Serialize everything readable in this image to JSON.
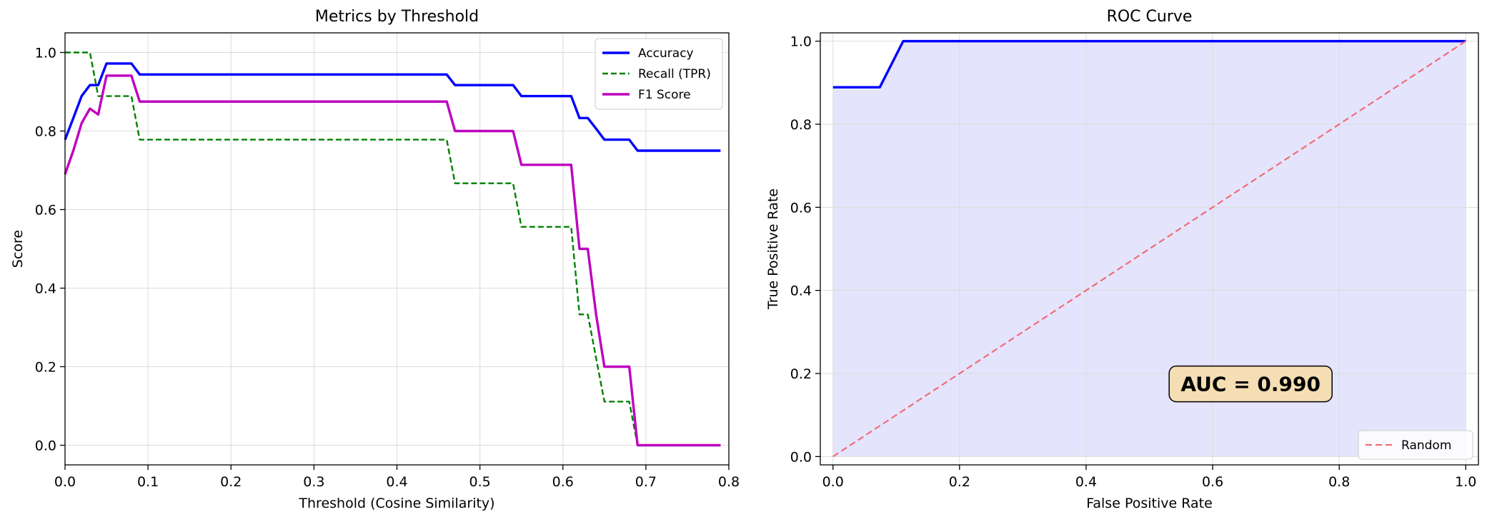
{
  "chart_data": [
    {
      "type": "line",
      "title": "Metrics by Threshold",
      "xlabel": "Threshold (Cosine Similarity)",
      "ylabel": "Score",
      "xlim": [
        0.0,
        0.8
      ],
      "ylim": [
        -0.05,
        1.05
      ],
      "xticks": [
        "0.0",
        "0.1",
        "0.2",
        "0.3",
        "0.4",
        "0.5",
        "0.6",
        "0.7",
        "0.8"
      ],
      "yticks": [
        "0.0",
        "0.2",
        "0.4",
        "0.6",
        "0.8",
        "1.0"
      ],
      "grid": true,
      "legend_position": "upper right",
      "series": [
        {
          "name": "Accuracy",
          "color": "#0000ff",
          "style": "solid",
          "x": [
            0.0,
            0.01,
            0.02,
            0.03,
            0.04,
            0.05,
            0.06,
            0.07,
            0.08,
            0.09,
            0.1,
            0.46,
            0.47,
            0.54,
            0.55,
            0.61,
            0.62,
            0.63,
            0.64,
            0.65,
            0.68,
            0.69,
            0.79
          ],
          "y": [
            0.778,
            0.833,
            0.889,
            0.917,
            0.917,
            0.972,
            0.972,
            0.972,
            0.972,
            0.944,
            0.944,
            0.944,
            0.917,
            0.917,
            0.889,
            0.889,
            0.833,
            0.833,
            0.806,
            0.778,
            0.778,
            0.75,
            0.75
          ]
        },
        {
          "name": "Recall (TPR)",
          "color": "#008000",
          "style": "dashed",
          "x": [
            0.0,
            0.03,
            0.04,
            0.08,
            0.09,
            0.46,
            0.47,
            0.54,
            0.55,
            0.61,
            0.62,
            0.63,
            0.64,
            0.65,
            0.68,
            0.69,
            0.79
          ],
          "y": [
            1.0,
            1.0,
            0.889,
            0.889,
            0.778,
            0.778,
            0.667,
            0.667,
            0.556,
            0.556,
            0.333,
            0.333,
            0.222,
            0.111,
            0.111,
            0.0,
            0.0
          ]
        },
        {
          "name": "F1 Score",
          "color": "#bf00bf",
          "style": "solid",
          "x": [
            0.0,
            0.01,
            0.02,
            0.03,
            0.04,
            0.05,
            0.08,
            0.09,
            0.46,
            0.47,
            0.54,
            0.55,
            0.61,
            0.62,
            0.63,
            0.64,
            0.65,
            0.68,
            0.69,
            0.79
          ],
          "y": [
            0.69,
            0.75,
            0.82,
            0.857,
            0.842,
            0.941,
            0.941,
            0.875,
            0.875,
            0.8,
            0.8,
            0.714,
            0.714,
            0.5,
            0.5,
            0.333,
            0.2,
            0.2,
            0.0,
            0.0
          ]
        }
      ]
    },
    {
      "type": "line",
      "title": "ROC Curve",
      "xlabel": "False Positive Rate",
      "ylabel": "True Positive Rate",
      "xlim": [
        -0.02,
        1.02
      ],
      "ylim": [
        -0.02,
        1.02
      ],
      "xticks": [
        "0.0",
        "0.2",
        "0.4",
        "0.6",
        "0.8",
        "1.0"
      ],
      "yticks": [
        "0.0",
        "0.2",
        "0.4",
        "0.6",
        "0.8",
        "1.0"
      ],
      "grid": true,
      "legend_position": "lower right",
      "fill_color": "#e4e4fc",
      "annotation": {
        "text": "AUC = 0.990",
        "x": 0.66,
        "y": 0.175,
        "box_color": "#f5deb3"
      },
      "series": [
        {
          "name": "",
          "color": "#0000ff",
          "style": "solid",
          "x": [
            0.0,
            0.074,
            0.111,
            1.0
          ],
          "y": [
            0.889,
            0.889,
            1.0,
            1.0
          ]
        },
        {
          "name": "Random",
          "color": "#f06d76",
          "style": "dashed",
          "x": [
            0.0,
            1.0
          ],
          "y": [
            0.0,
            1.0
          ]
        }
      ]
    }
  ]
}
